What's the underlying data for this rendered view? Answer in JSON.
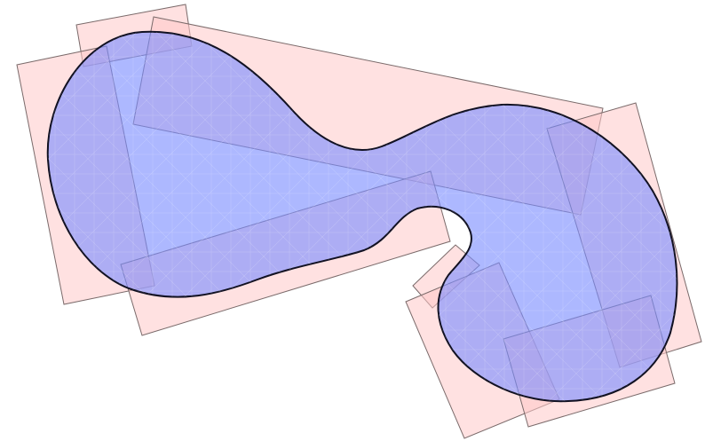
{
  "diagram": {
    "shape_count": 8,
    "colors": {
      "background": "#ffffff",
      "rectangle_fill": "#ffc8c8",
      "rectangle_stroke": "#7a6a6a",
      "blob_fill": "#7a8cff",
      "blob_stroke": "#111122",
      "mesh_lines": "#ffffff"
    }
  }
}
